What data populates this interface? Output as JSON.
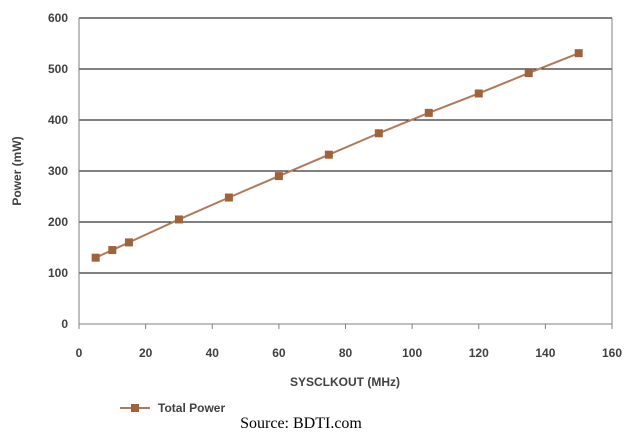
{
  "chart_data": {
    "type": "line",
    "title": "",
    "xlabel": "SYSCLKOUT (MHz)",
    "ylabel": "Power (mW)",
    "xlim": [
      0,
      160
    ],
    "ylim": [
      0,
      600
    ],
    "x_ticks": [
      0,
      20,
      40,
      60,
      80,
      100,
      120,
      140,
      160
    ],
    "y_ticks": [
      0,
      100,
      200,
      300,
      400,
      500,
      600
    ],
    "grid": "horizontal",
    "legend_position": "bottom-left",
    "series": [
      {
        "name": "Total Power",
        "color": "#b07a59",
        "marker": "square",
        "marker_color": "#a0623a",
        "x": [
          5,
          10,
          15,
          30,
          45,
          60,
          75,
          90,
          105,
          120,
          135,
          150
        ],
        "y": [
          130,
          145,
          160,
          205,
          248,
          290,
          332,
          374,
          414,
          452,
          492,
          531
        ]
      }
    ]
  },
  "source": "Source: BDTI.com"
}
